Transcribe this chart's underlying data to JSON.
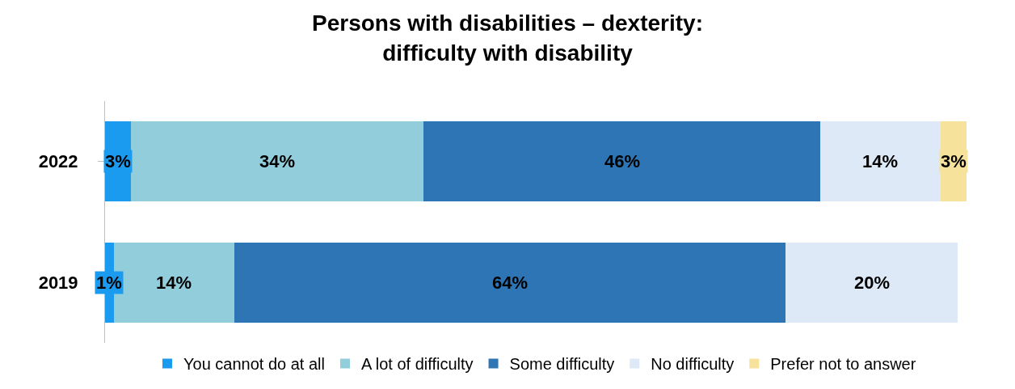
{
  "chart_data": {
    "type": "bar",
    "orientation": "horizontal",
    "stacked": true,
    "title": "Persons with disabilities – dexterity:\ndifficulty with disability",
    "categories": [
      "2022",
      "2019"
    ],
    "xlim": [
      0,
      100
    ],
    "tick_labels": "y",
    "legend": "bottom",
    "series": [
      {
        "name": "You cannot do at all",
        "color": "#1a9bf0",
        "values": [
          3,
          1
        ],
        "value_labels": [
          "3%",
          "1%"
        ]
      },
      {
        "name": "A lot of difficulty",
        "color": "#92cddc",
        "values": [
          34,
          14
        ],
        "value_labels": [
          "34%",
          "14%"
        ]
      },
      {
        "name": "Some difficulty",
        "color": "#2e75b6",
        "values": [
          46,
          64
        ],
        "value_labels": [
          "46%",
          "64%"
        ]
      },
      {
        "name": "No difficulty",
        "color": "#dde9f6",
        "values": [
          14,
          20
        ],
        "value_labels": [
          "14%",
          "20%"
        ]
      },
      {
        "name": "Prefer not to answer",
        "color": "#f7e29c",
        "values": [
          3,
          null
        ],
        "value_labels": [
          "3%",
          null
        ]
      }
    ]
  }
}
